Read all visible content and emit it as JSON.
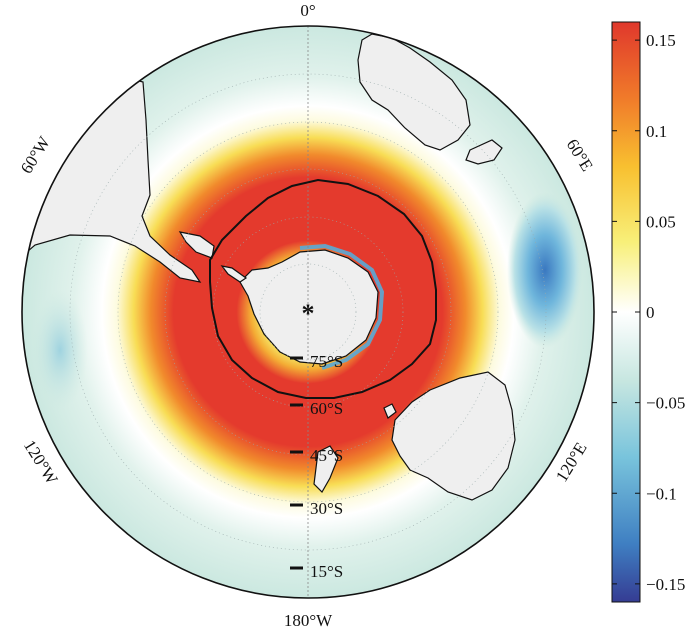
{
  "map": {
    "pole_marker": "*",
    "lon_labels": {
      "top": "0°",
      "bottom": "180°W",
      "upper_left": "60°W",
      "upper_right": "60°E",
      "lower_left": "120°W",
      "lower_right": "120°E"
    },
    "lat_labels": [
      "75°S",
      "60°S",
      "45°S",
      "30°S",
      "15°S"
    ]
  },
  "colorbar": {
    "ticks": [
      "0.15",
      "0.1",
      "0.05",
      "0",
      "−0.05",
      "−0.1",
      "−0.15"
    ],
    "range": [
      -0.16,
      0.16
    ],
    "colors": [
      "#353c93",
      "#3f7fc2",
      "#79c4dc",
      "#c6e6e0",
      "#ffffff",
      "#f8f07a",
      "#f8c030",
      "#f07a2a",
      "#e0382c"
    ]
  },
  "colors": {
    "land": "#efefef",
    "background_field": "#d0ebe3",
    "positive_ring": "#e43a2d",
    "negative_anomaly": "#3f82c5"
  }
}
